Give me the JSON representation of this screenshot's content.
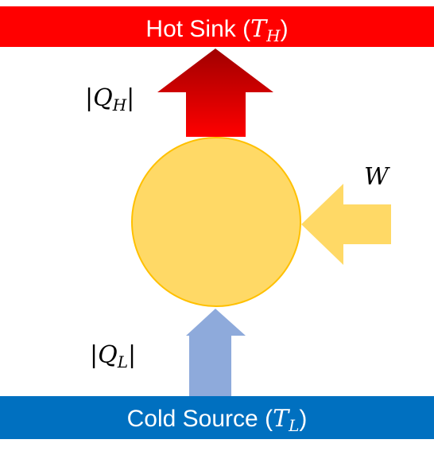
{
  "hot_sink": {
    "label": "Hot Sink (",
    "symbol": "T",
    "subscript": "H",
    "close": ")",
    "color": "#ff0000"
  },
  "cold_source": {
    "label": "Cold Source (",
    "symbol": "T",
    "subscript": "L",
    "close": ")",
    "color": "#0070c0"
  },
  "heat_out": {
    "open": "|",
    "symbol": "Q",
    "subscript": "H",
    "close": "|",
    "arrow_color_top": "#a00000",
    "arrow_color_bottom": "#ff0000"
  },
  "heat_in": {
    "open": "|",
    "symbol": "Q",
    "subscript": "L",
    "close": "|",
    "arrow_color": "#8eaadb"
  },
  "work": {
    "symbol": "W",
    "arrow_color": "#ffd966"
  },
  "engine": {
    "fill_color": "#ffd966",
    "stroke_color": "#ffc000"
  }
}
